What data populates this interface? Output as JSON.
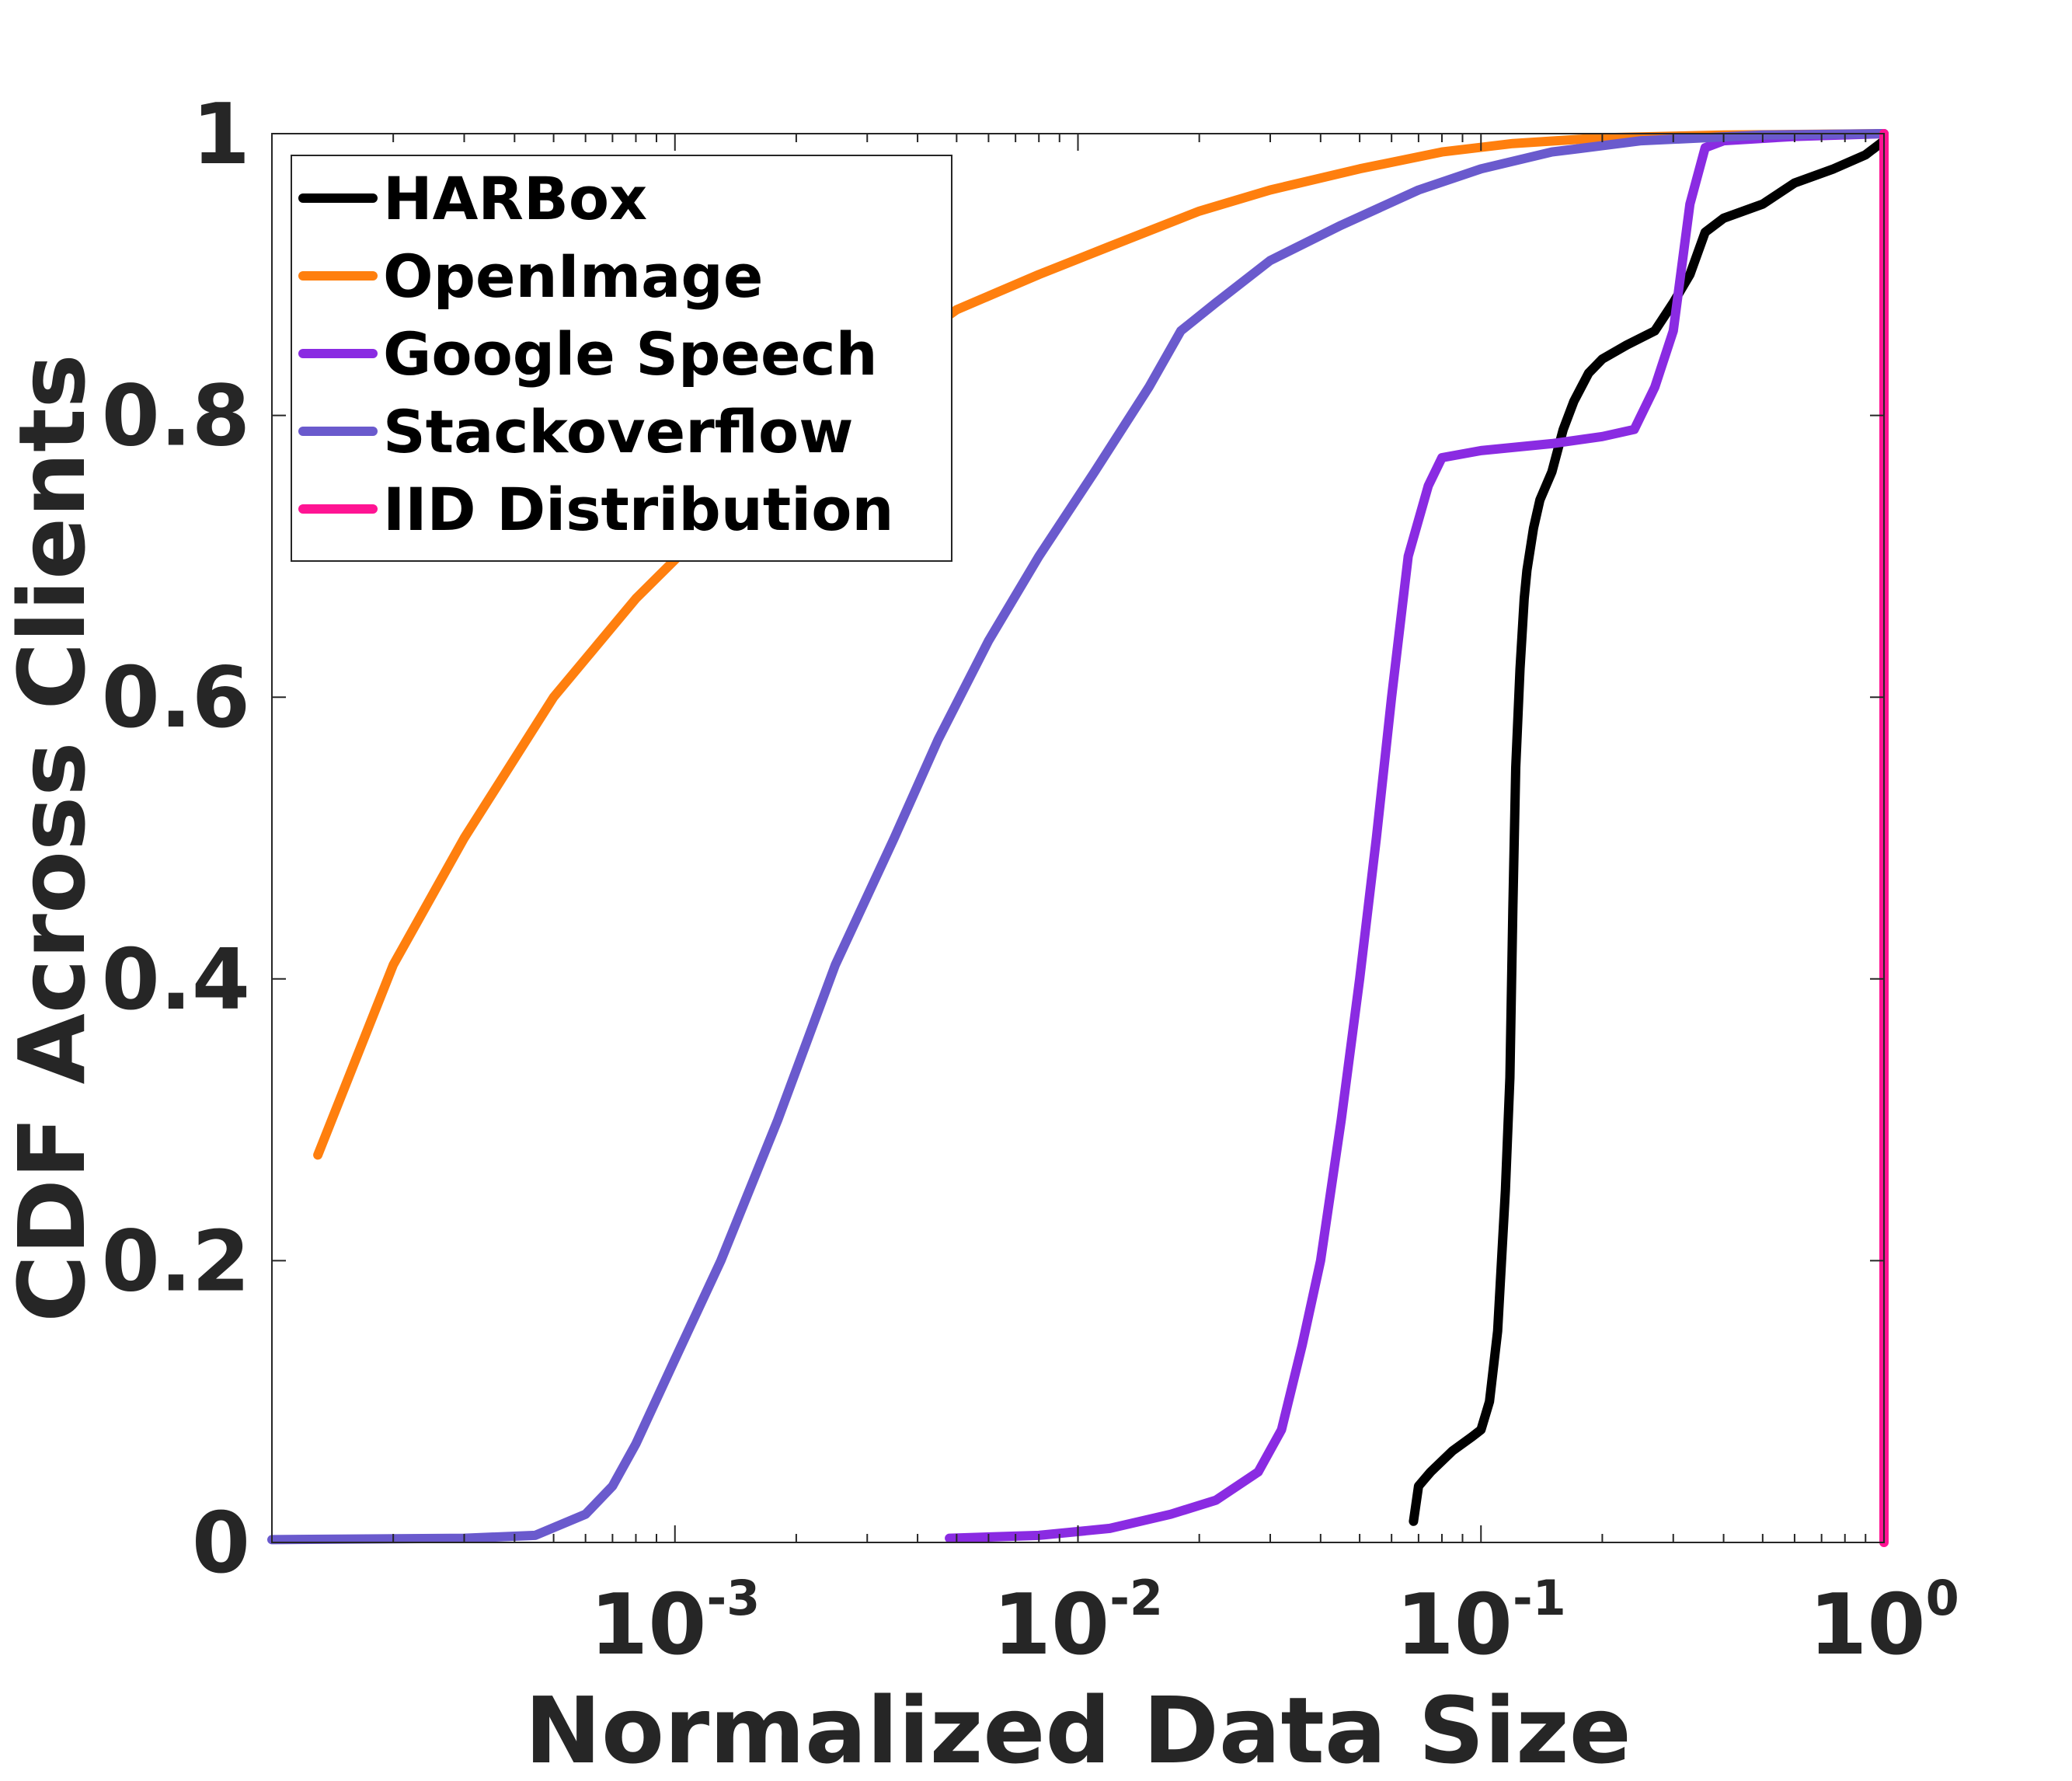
{
  "chart_data": {
    "type": "line",
    "xlabel": "Normalized Data Size",
    "ylabel": "CDF Across Clients",
    "xscale": "log",
    "xlim": [
      0.0001,
      1
    ],
    "ylim": [
      0,
      1
    ],
    "x_ticks": [
      0.001,
      0.01,
      0.1,
      1
    ],
    "x_tick_labels": [
      {
        "base": "10",
        "exp": "-3"
      },
      {
        "base": "10",
        "exp": "-2"
      },
      {
        "base": "10",
        "exp": "-1"
      },
      {
        "base": "10",
        "exp": "0"
      }
    ],
    "y_ticks": [
      0,
      0.2,
      0.4,
      0.6,
      0.8,
      1
    ],
    "y_tick_labels": [
      "0",
      "0.2",
      "0.4",
      "0.6",
      "0.8",
      "1"
    ],
    "grid": false,
    "legend_position": "top-left",
    "series": [
      {
        "name": "HARBox",
        "color": "#000000",
        "points": [
          [
            0.068,
            0.015
          ],
          [
            0.07,
            0.04
          ],
          [
            0.075,
            0.05
          ],
          [
            0.085,
            0.065
          ],
          [
            0.095,
            0.075
          ],
          [
            0.1,
            0.08
          ],
          [
            0.105,
            0.1
          ],
          [
            0.11,
            0.15
          ],
          [
            0.115,
            0.25
          ],
          [
            0.118,
            0.33
          ],
          [
            0.12,
            0.45
          ],
          [
            0.122,
            0.55
          ],
          [
            0.125,
            0.62
          ],
          [
            0.128,
            0.67
          ],
          [
            0.13,
            0.69
          ],
          [
            0.135,
            0.72
          ],
          [
            0.14,
            0.74
          ],
          [
            0.15,
            0.76
          ],
          [
            0.16,
            0.79
          ],
          [
            0.17,
            0.81
          ],
          [
            0.185,
            0.83
          ],
          [
            0.2,
            0.84
          ],
          [
            0.23,
            0.85
          ],
          [
            0.27,
            0.86
          ],
          [
            0.3,
            0.88
          ],
          [
            0.33,
            0.9
          ],
          [
            0.36,
            0.93
          ],
          [
            0.4,
            0.94
          ],
          [
            0.5,
            0.95
          ],
          [
            0.6,
            0.965
          ],
          [
            0.75,
            0.975
          ],
          [
            0.9,
            0.985
          ],
          [
            1.0,
            0.995
          ]
        ]
      },
      {
        "name": "OpenImage",
        "color": "#ff7f0e",
        "points": [
          [
            0.00013,
            0.275
          ],
          [
            0.0002,
            0.41
          ],
          [
            0.0003,
            0.5
          ],
          [
            0.0005,
            0.6
          ],
          [
            0.0008,
            0.67
          ],
          [
            0.0012,
            0.72
          ],
          [
            0.002,
            0.79
          ],
          [
            0.003,
            0.83
          ],
          [
            0.005,
            0.875
          ],
          [
            0.008,
            0.9
          ],
          [
            0.012,
            0.92
          ],
          [
            0.02,
            0.945
          ],
          [
            0.03,
            0.96
          ],
          [
            0.05,
            0.975
          ],
          [
            0.08,
            0.987
          ],
          [
            0.12,
            0.993
          ],
          [
            0.2,
            0.997
          ],
          [
            0.4,
            0.999
          ],
          [
            1.0,
            1.0
          ]
        ]
      },
      {
        "name": "Google Speech",
        "color": "#8a2be2",
        "points": [
          [
            0.0048,
            0.003
          ],
          [
            0.008,
            0.005
          ],
          [
            0.012,
            0.01
          ],
          [
            0.017,
            0.02
          ],
          [
            0.022,
            0.03
          ],
          [
            0.028,
            0.05
          ],
          [
            0.032,
            0.08
          ],
          [
            0.036,
            0.14
          ],
          [
            0.04,
            0.2
          ],
          [
            0.045,
            0.3
          ],
          [
            0.05,
            0.4
          ],
          [
            0.055,
            0.5
          ],
          [
            0.06,
            0.6
          ],
          [
            0.066,
            0.7
          ],
          [
            0.074,
            0.75
          ],
          [
            0.08,
            0.77
          ],
          [
            0.1,
            0.775
          ],
          [
            0.15,
            0.78
          ],
          [
            0.2,
            0.785
          ],
          [
            0.24,
            0.79
          ],
          [
            0.27,
            0.82
          ],
          [
            0.3,
            0.86
          ],
          [
            0.33,
            0.95
          ],
          [
            0.36,
            0.99
          ],
          [
            0.4,
            0.995
          ],
          [
            0.6,
            0.998
          ],
          [
            1.0,
            1.0
          ]
        ]
      },
      {
        "name": "Stackoverflow",
        "color": "#6a5acd",
        "points": [
          [
            0.0001,
            0.002
          ],
          [
            0.0003,
            0.003
          ],
          [
            0.00045,
            0.005
          ],
          [
            0.0006,
            0.02
          ],
          [
            0.0007,
            0.04
          ],
          [
            0.0008,
            0.07
          ],
          [
            0.001,
            0.13
          ],
          [
            0.0013,
            0.2
          ],
          [
            0.0018,
            0.3
          ],
          [
            0.0025,
            0.41
          ],
          [
            0.0035,
            0.5
          ],
          [
            0.0045,
            0.57
          ],
          [
            0.006,
            0.64
          ],
          [
            0.008,
            0.7
          ],
          [
            0.011,
            0.76
          ],
          [
            0.015,
            0.82
          ],
          [
            0.018,
            0.86
          ],
          [
            0.022,
            0.88
          ],
          [
            0.03,
            0.91
          ],
          [
            0.045,
            0.935
          ],
          [
            0.07,
            0.96
          ],
          [
            0.1,
            0.975
          ],
          [
            0.15,
            0.987
          ],
          [
            0.25,
            0.995
          ],
          [
            0.5,
            0.999
          ],
          [
            1.0,
            1.0
          ]
        ]
      },
      {
        "name": "IID Distribution",
        "color": "#ff1493",
        "points": [
          [
            1.0,
            0.0
          ],
          [
            1.0,
            1.0
          ]
        ]
      }
    ]
  }
}
